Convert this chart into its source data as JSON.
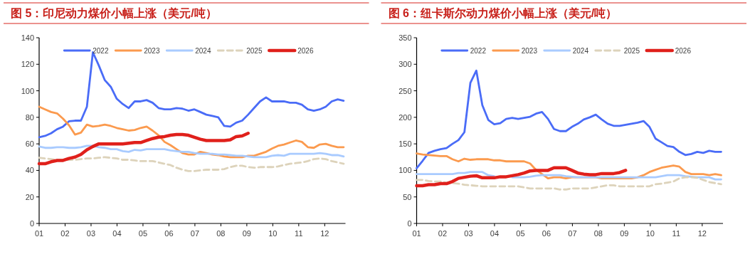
{
  "chart_data": [
    {
      "type": "line",
      "title": "图 5：印尼动力煤价小幅上涨（美元/吨）",
      "legend": "top",
      "grid": false,
      "x": [
        1,
        1.23,
        1.46,
        1.69,
        1.92,
        2.15,
        2.38,
        2.61,
        2.84,
        3.07,
        3.3,
        3.53,
        3.76,
        3.99,
        4.22,
        4.45,
        4.68,
        4.91,
        5.14,
        5.37,
        5.6,
        5.83,
        6.06,
        6.29,
        6.52,
        6.75,
        6.98,
        7.21,
        7.44,
        7.67,
        7.9,
        8.13,
        8.36,
        8.59,
        8.82,
        9.05,
        9.28,
        9.51,
        9.74,
        9.97,
        10.2,
        10.43,
        10.66,
        10.89,
        11.12,
        11.35,
        11.58,
        11.81,
        12.04,
        12.27,
        12.5,
        12.73
      ],
      "xlim": [
        1,
        12.8
      ],
      "xticks": [
        {
          "value": 1,
          "label": "01"
        },
        {
          "value": 2,
          "label": "02"
        },
        {
          "value": 3,
          "label": "03"
        },
        {
          "value": 4,
          "label": "04"
        },
        {
          "value": 5,
          "label": "05"
        },
        {
          "value": 6,
          "label": "06"
        },
        {
          "value": 7,
          "label": "07"
        },
        {
          "value": 8,
          "label": "08"
        },
        {
          "value": 9,
          "label": "09"
        },
        {
          "value": 10,
          "label": "10"
        },
        {
          "value": 11,
          "label": "11"
        },
        {
          "value": 12,
          "label": "12"
        }
      ],
      "ylim": [
        0,
        140
      ],
      "yticks": [
        0,
        20,
        40,
        60,
        80,
        100,
        120,
        140
      ],
      "series": [
        {
          "name": "2022",
          "color": "#4a6cf7",
          "values": [
            65,
            66,
            68,
            71,
            73,
            77,
            77.5,
            77.5,
            88,
            129,
            119,
            108,
            103,
            94,
            90,
            87,
            92,
            92,
            93,
            91,
            87,
            86,
            86,
            87,
            86.5,
            85,
            86,
            84,
            82,
            81,
            80,
            73.5,
            73,
            76,
            77.5,
            82,
            87,
            92,
            95,
            92,
            92,
            92,
            91,
            91,
            89.5,
            86,
            85,
            86,
            88,
            92,
            93.5,
            92.5
          ]
        },
        {
          "name": "2023",
          "color": "#fb9a4e",
          "values": [
            88,
            86,
            84,
            83,
            79,
            74,
            67,
            68.5,
            74.5,
            73,
            73.5,
            74.5,
            73.5,
            72,
            71,
            70,
            70.5,
            72,
            73,
            70,
            66.5,
            61.5,
            59,
            56,
            53,
            52,
            52,
            54,
            53,
            52,
            51.5,
            50.5,
            50,
            50,
            50,
            51,
            51,
            52.5,
            54,
            56.5,
            58.5,
            59.5,
            61,
            62.5,
            61.5,
            57.5,
            57,
            59.5,
            60,
            58.5,
            57.5,
            57.5
          ]
        },
        {
          "name": "2024",
          "color": "#a9cbff",
          "values": [
            58,
            57,
            57,
            57.5,
            57.5,
            57,
            57,
            57.5,
            58.5,
            58.5,
            57.5,
            57,
            56,
            56,
            54.5,
            54,
            55.5,
            55,
            56,
            56,
            56,
            56,
            55,
            54.5,
            54,
            54,
            53,
            52.5,
            52.5,
            52.5,
            52,
            52,
            51.5,
            51,
            51,
            50.5,
            50,
            50,
            50,
            51,
            51.5,
            51,
            52.5,
            52.5,
            52.5,
            52.5,
            52.5,
            53,
            52.5,
            51.5,
            51.5,
            50.5
          ]
        },
        {
          "name": "2025",
          "color": "#ddd3bb",
          "line_style": "dashed",
          "values": [
            49.5,
            49,
            48.5,
            48,
            48,
            48,
            48,
            48.5,
            49,
            49,
            49.5,
            50,
            49.5,
            49,
            48,
            48,
            47.5,
            47,
            47,
            47,
            46,
            45,
            44,
            42,
            40.5,
            39.5,
            39.5,
            40,
            40.5,
            40.5,
            40.5,
            41,
            42.5,
            43.5,
            43.5,
            42.5,
            42,
            42.5,
            42.5,
            42.5,
            43,
            44,
            45,
            45.5,
            46,
            47,
            48.5,
            49,
            48.5,
            47,
            46,
            45
          ]
        },
        {
          "name": "2026",
          "color": "#e0201b",
          "values": [
            45,
            45,
            46.5,
            47.5,
            47.5,
            49,
            50,
            52,
            55.5,
            58,
            60,
            60,
            60,
            60,
            60,
            60.5,
            61,
            61,
            62.5,
            64,
            65,
            65.5,
            66.5,
            67,
            67,
            66.5,
            65,
            63.5,
            62.5,
            62.5,
            62.5,
            62.5,
            63,
            65.5,
            66,
            68,
            null,
            null,
            null,
            null,
            null,
            null,
            null,
            null,
            null,
            null,
            null,
            null,
            null,
            null,
            null,
            null
          ]
        }
      ]
    },
    {
      "type": "line",
      "title": "图 6：纽卡斯尔动力煤价小幅上涨（美元/吨）",
      "legend": "top",
      "grid": false,
      "x": [
        1,
        1.23,
        1.46,
        1.69,
        1.92,
        2.15,
        2.38,
        2.61,
        2.84,
        3.07,
        3.3,
        3.53,
        3.76,
        3.99,
        4.22,
        4.45,
        4.68,
        4.91,
        5.14,
        5.37,
        5.6,
        5.83,
        6.06,
        6.29,
        6.52,
        6.75,
        6.98,
        7.21,
        7.44,
        7.67,
        7.9,
        8.13,
        8.36,
        8.59,
        8.82,
        9.05,
        9.28,
        9.51,
        9.74,
        9.97,
        10.2,
        10.43,
        10.66,
        10.89,
        11.12,
        11.35,
        11.58,
        11.81,
        12.04,
        12.27,
        12.5,
        12.73
      ],
      "xlim": [
        1,
        12.8
      ],
      "xticks": [
        {
          "value": 1,
          "label": "01"
        },
        {
          "value": 2,
          "label": "02"
        },
        {
          "value": 3,
          "label": "03"
        },
        {
          "value": 4,
          "label": "04"
        },
        {
          "value": 5,
          "label": "05"
        },
        {
          "value": 6,
          "label": "06"
        },
        {
          "value": 7,
          "label": "07"
        },
        {
          "value": 8,
          "label": "08"
        },
        {
          "value": 9,
          "label": "09"
        },
        {
          "value": 10,
          "label": "10"
        },
        {
          "value": 11,
          "label": "11"
        },
        {
          "value": 12,
          "label": "12"
        }
      ],
      "ylim": [
        0,
        350
      ],
      "yticks": [
        0,
        50,
        100,
        150,
        200,
        250,
        300,
        350
      ],
      "series": [
        {
          "name": "2022",
          "color": "#4a6cf7",
          "values": [
            104,
            118,
            133,
            137,
            140,
            142,
            150,
            157,
            172,
            265,
            288,
            223,
            195,
            187,
            189,
            197,
            199,
            197,
            199,
            201,
            207,
            210,
            197,
            178,
            174,
            174,
            182,
            188,
            196,
            200,
            205,
            196,
            188,
            184,
            184,
            186,
            188,
            190,
            193,
            182,
            160,
            153,
            146,
            144,
            135,
            129,
            131,
            135,
            133,
            137,
            135,
            135
          ]
        },
        {
          "name": "2023",
          "color": "#fb9a4e",
          "values": [
            132,
            130,
            129,
            128,
            127,
            127,
            121,
            117,
            122,
            120,
            121,
            121,
            121,
            119,
            119,
            117,
            117,
            117,
            117,
            113,
            101,
            93,
            85,
            87,
            87,
            85,
            87,
            87,
            87,
            87,
            87,
            85,
            85,
            85,
            85,
            85,
            85,
            87,
            91,
            97,
            101,
            105,
            107,
            109,
            107,
            97,
            93,
            93,
            93,
            91,
            93,
            91
          ]
        },
        {
          "name": "2024",
          "color": "#a9cbff",
          "values": [
            93,
            93,
            93,
            93,
            93,
            93,
            93,
            95,
            95,
            97,
            97,
            97,
            91,
            89,
            null,
            null,
            87,
            87,
            87,
            88,
            90,
            91,
            91,
            91,
            91,
            89,
            88,
            87,
            87,
            87,
            87,
            87,
            87,
            87,
            87,
            87,
            87,
            87,
            87,
            87,
            87,
            89,
            91,
            91,
            91,
            89,
            88,
            87,
            87,
            87,
            83,
            83
          ]
        },
        {
          "name": "2025",
          "color": "#ddd3bb",
          "line_style": "dashed",
          "values": [
            82,
            82,
            80,
            79,
            79,
            77,
            76,
            75,
            73,
            72,
            71,
            70,
            70,
            70,
            70,
            70,
            70,
            70,
            68,
            66,
            66,
            66,
            66,
            66,
            64,
            64,
            66,
            66,
            66,
            66,
            68,
            70,
            72,
            72,
            70,
            70,
            70,
            70,
            70,
            70,
            74,
            75,
            77,
            79,
            85,
            87,
            87,
            86,
            82,
            78,
            76,
            74
          ]
        },
        {
          "name": "2026",
          "color": "#e0201b",
          "values": [
            71,
            71,
            73,
            73,
            75,
            75,
            79,
            85,
            87,
            89,
            90,
            86,
            86,
            86,
            88,
            88,
            90,
            92,
            95,
            99,
            100,
            100,
            100,
            105,
            105,
            105,
            100,
            95,
            93,
            92,
            92,
            94,
            94,
            94,
            96,
            100,
            null,
            null,
            null,
            null,
            null,
            null,
            null,
            null,
            null,
            null,
            null,
            null,
            null,
            null,
            null,
            null
          ]
        }
      ]
    }
  ]
}
